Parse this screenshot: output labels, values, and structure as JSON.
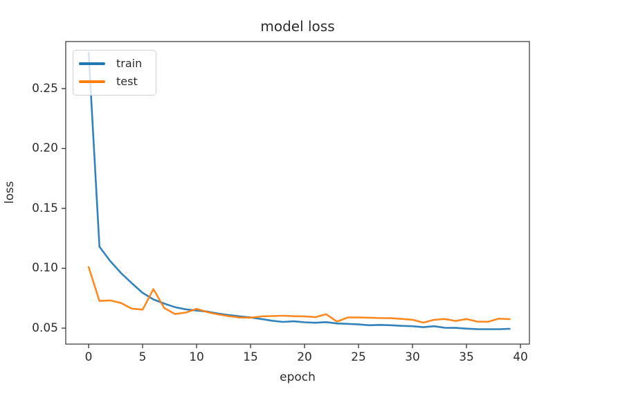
{
  "chart_data": {
    "type": "line",
    "title": "model loss",
    "xlabel": "epoch",
    "ylabel": "loss",
    "grid": false,
    "legend_position": "upper left",
    "x": [
      0,
      1,
      2,
      3,
      4,
      5,
      6,
      7,
      8,
      9,
      10,
      11,
      12,
      13,
      14,
      15,
      16,
      17,
      18,
      19,
      20,
      21,
      22,
      23,
      24,
      25,
      26,
      27,
      28,
      29,
      30,
      31,
      32,
      33,
      34,
      35,
      36,
      37,
      38,
      39
    ],
    "series": [
      {
        "name": "train",
        "color": "#1f77b4",
        "values": [
          0.28,
          0.118,
          0.106,
          0.096,
          0.0875,
          0.0795,
          0.074,
          0.0705,
          0.0675,
          0.0657,
          0.0647,
          0.0638,
          0.0622,
          0.0609,
          0.0599,
          0.0589,
          0.0576,
          0.0562,
          0.0552,
          0.0557,
          0.0549,
          0.0545,
          0.055,
          0.0539,
          0.0536,
          0.0531,
          0.0524,
          0.0527,
          0.0524,
          0.0519,
          0.0516,
          0.0508,
          0.0516,
          0.0503,
          0.0502,
          0.0496,
          0.0492,
          0.0491,
          0.0491,
          0.0495
        ]
      },
      {
        "name": "test",
        "color": "#ff7f0e",
        "values": [
          0.101,
          0.0727,
          0.0732,
          0.071,
          0.0663,
          0.0655,
          0.0826,
          0.0668,
          0.0618,
          0.063,
          0.0661,
          0.0634,
          0.0615,
          0.06,
          0.0589,
          0.0587,
          0.0598,
          0.0601,
          0.0604,
          0.06,
          0.0599,
          0.0592,
          0.0616,
          0.0555,
          0.0589,
          0.0589,
          0.0587,
          0.0584,
          0.0583,
          0.0577,
          0.057,
          0.0546,
          0.057,
          0.0576,
          0.056,
          0.0576,
          0.0555,
          0.0553,
          0.0579,
          0.0575
        ]
      }
    ],
    "xlim": [
      -2.12,
      40.83
    ],
    "ylim": [
      0.0367,
      0.2893
    ],
    "xticks": {
      "values": [
        0,
        5,
        10,
        15,
        20,
        25,
        30,
        35,
        40
      ],
      "labels": [
        "0",
        "5",
        "10",
        "15",
        "20",
        "25",
        "30",
        "35",
        "40"
      ]
    },
    "yticks": {
      "values": [
        0.05,
        0.1,
        0.15,
        0.2,
        0.25
      ],
      "labels": [
        "0.05",
        "0.10",
        "0.15",
        "0.20",
        "0.25"
      ]
    }
  },
  "style": {
    "spine_color": "#4d4d4d",
    "tick_color": "#3f3f3f",
    "line_width": 2.6,
    "line_opacity": 0.92
  }
}
